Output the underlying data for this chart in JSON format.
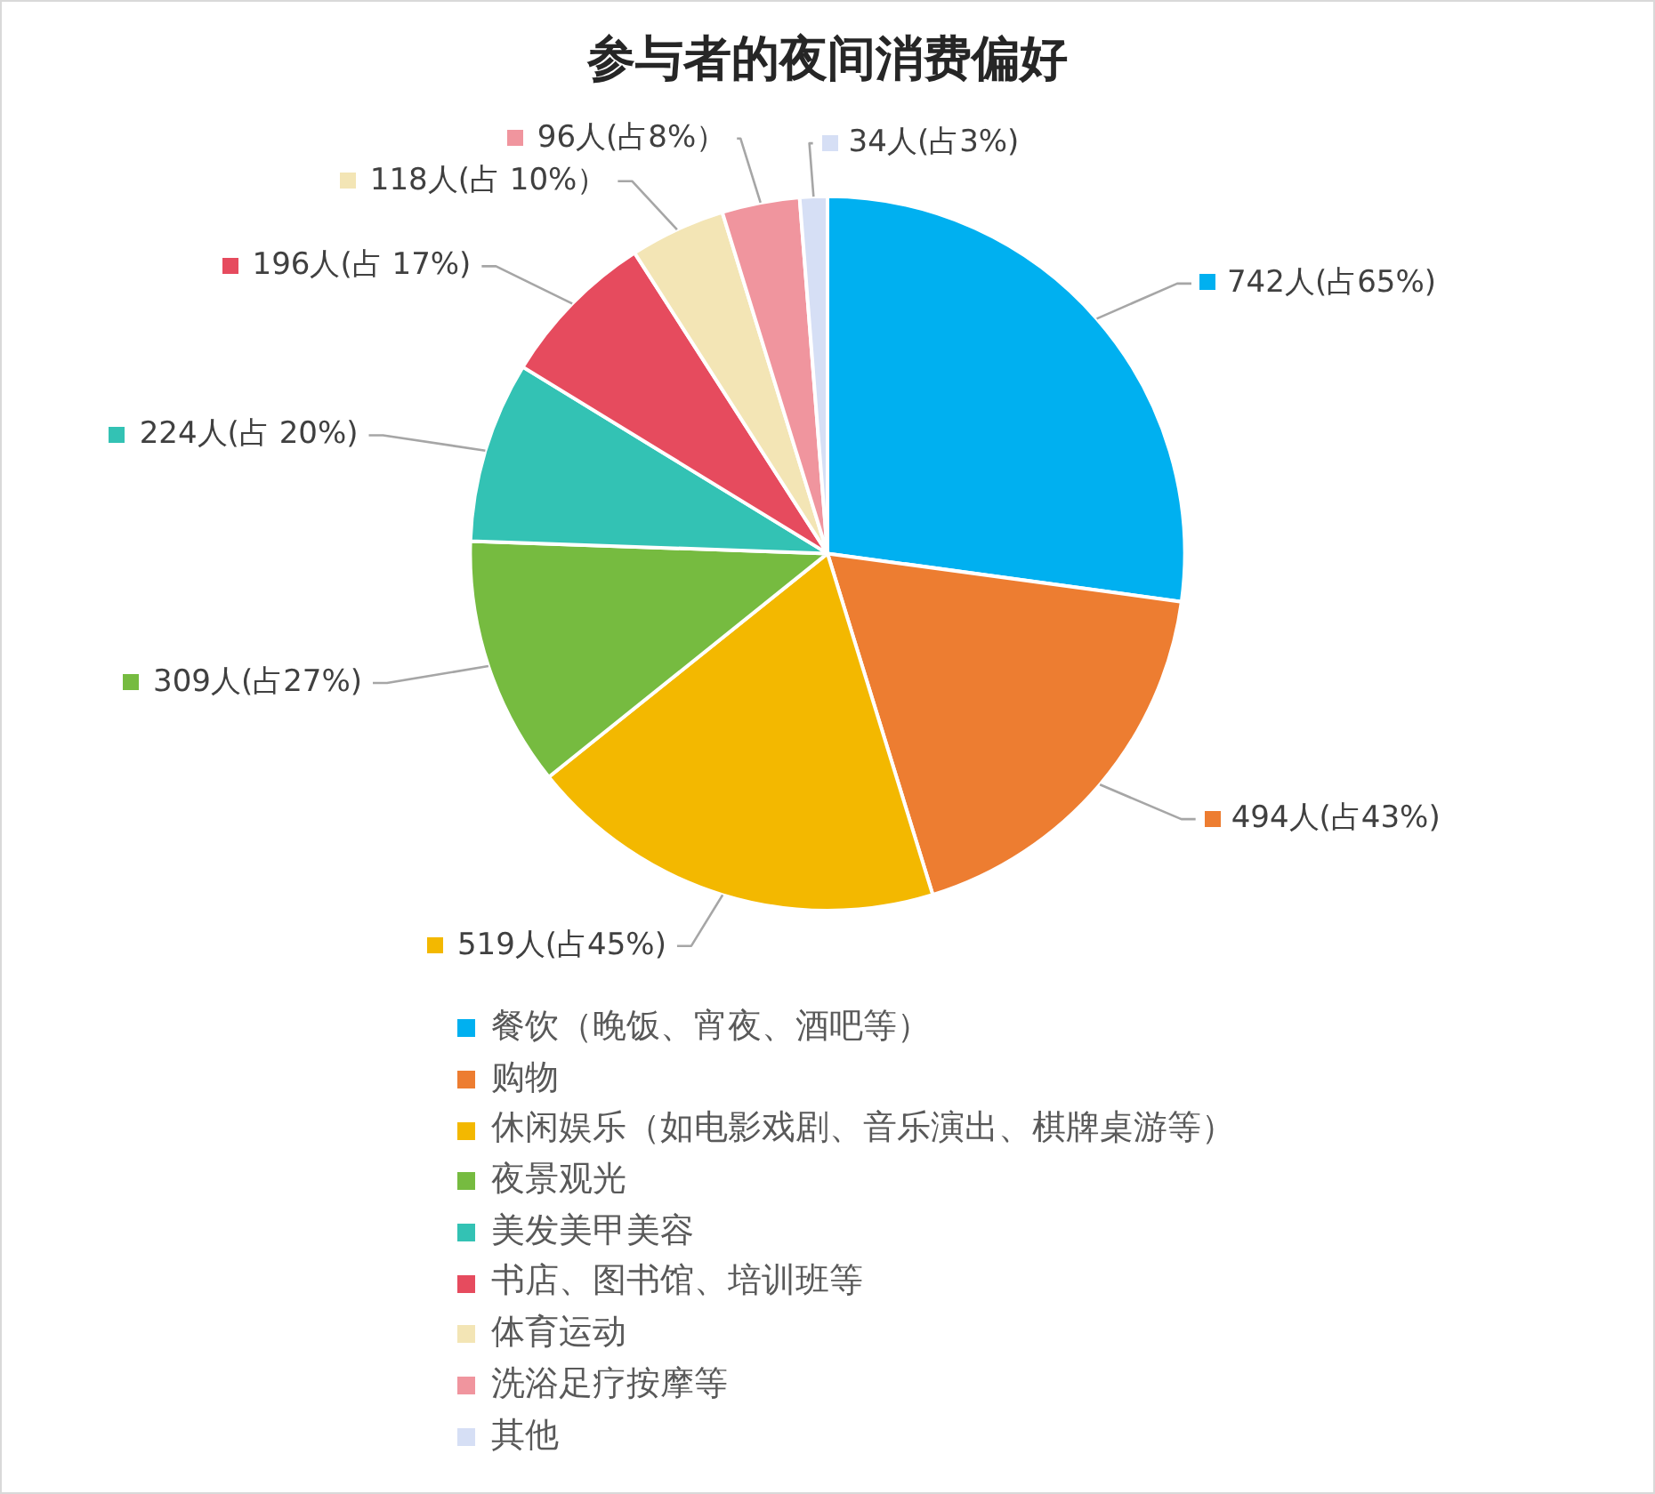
{
  "chart_data": {
    "type": "pie",
    "title": "参与者的夜间消费偏好",
    "categories": [
      "餐饮（晚饭、宵夜、酒吧等）",
      "购物",
      "休闲娱乐（如电影戏剧、音乐演出、棋牌桌游等）",
      "夜景观光",
      "美发美甲美容",
      "书店、图书馆、培训班等",
      "体育运动",
      "洗浴足疗按摩等",
      "其他"
    ],
    "values": [
      742,
      494,
      519,
      309,
      224,
      196,
      118,
      96,
      34
    ],
    "colors": [
      "#00b0f0",
      "#ed7d31",
      "#f3b800",
      "#76bb40",
      "#33c2b4",
      "#e64b5e",
      "#f3e5b5",
      "#f0959e",
      "#d6dff5"
    ],
    "value_labels": [
      "742人(占65%)",
      "494人(占43%)",
      "519人(占45%)",
      "309人(占27%)",
      "224人(占 20%)",
      "196人(占 17%)",
      "118人(占 10%）",
      "96人(占8%）",
      "34人(占3%)"
    ],
    "legend": "bottom"
  }
}
